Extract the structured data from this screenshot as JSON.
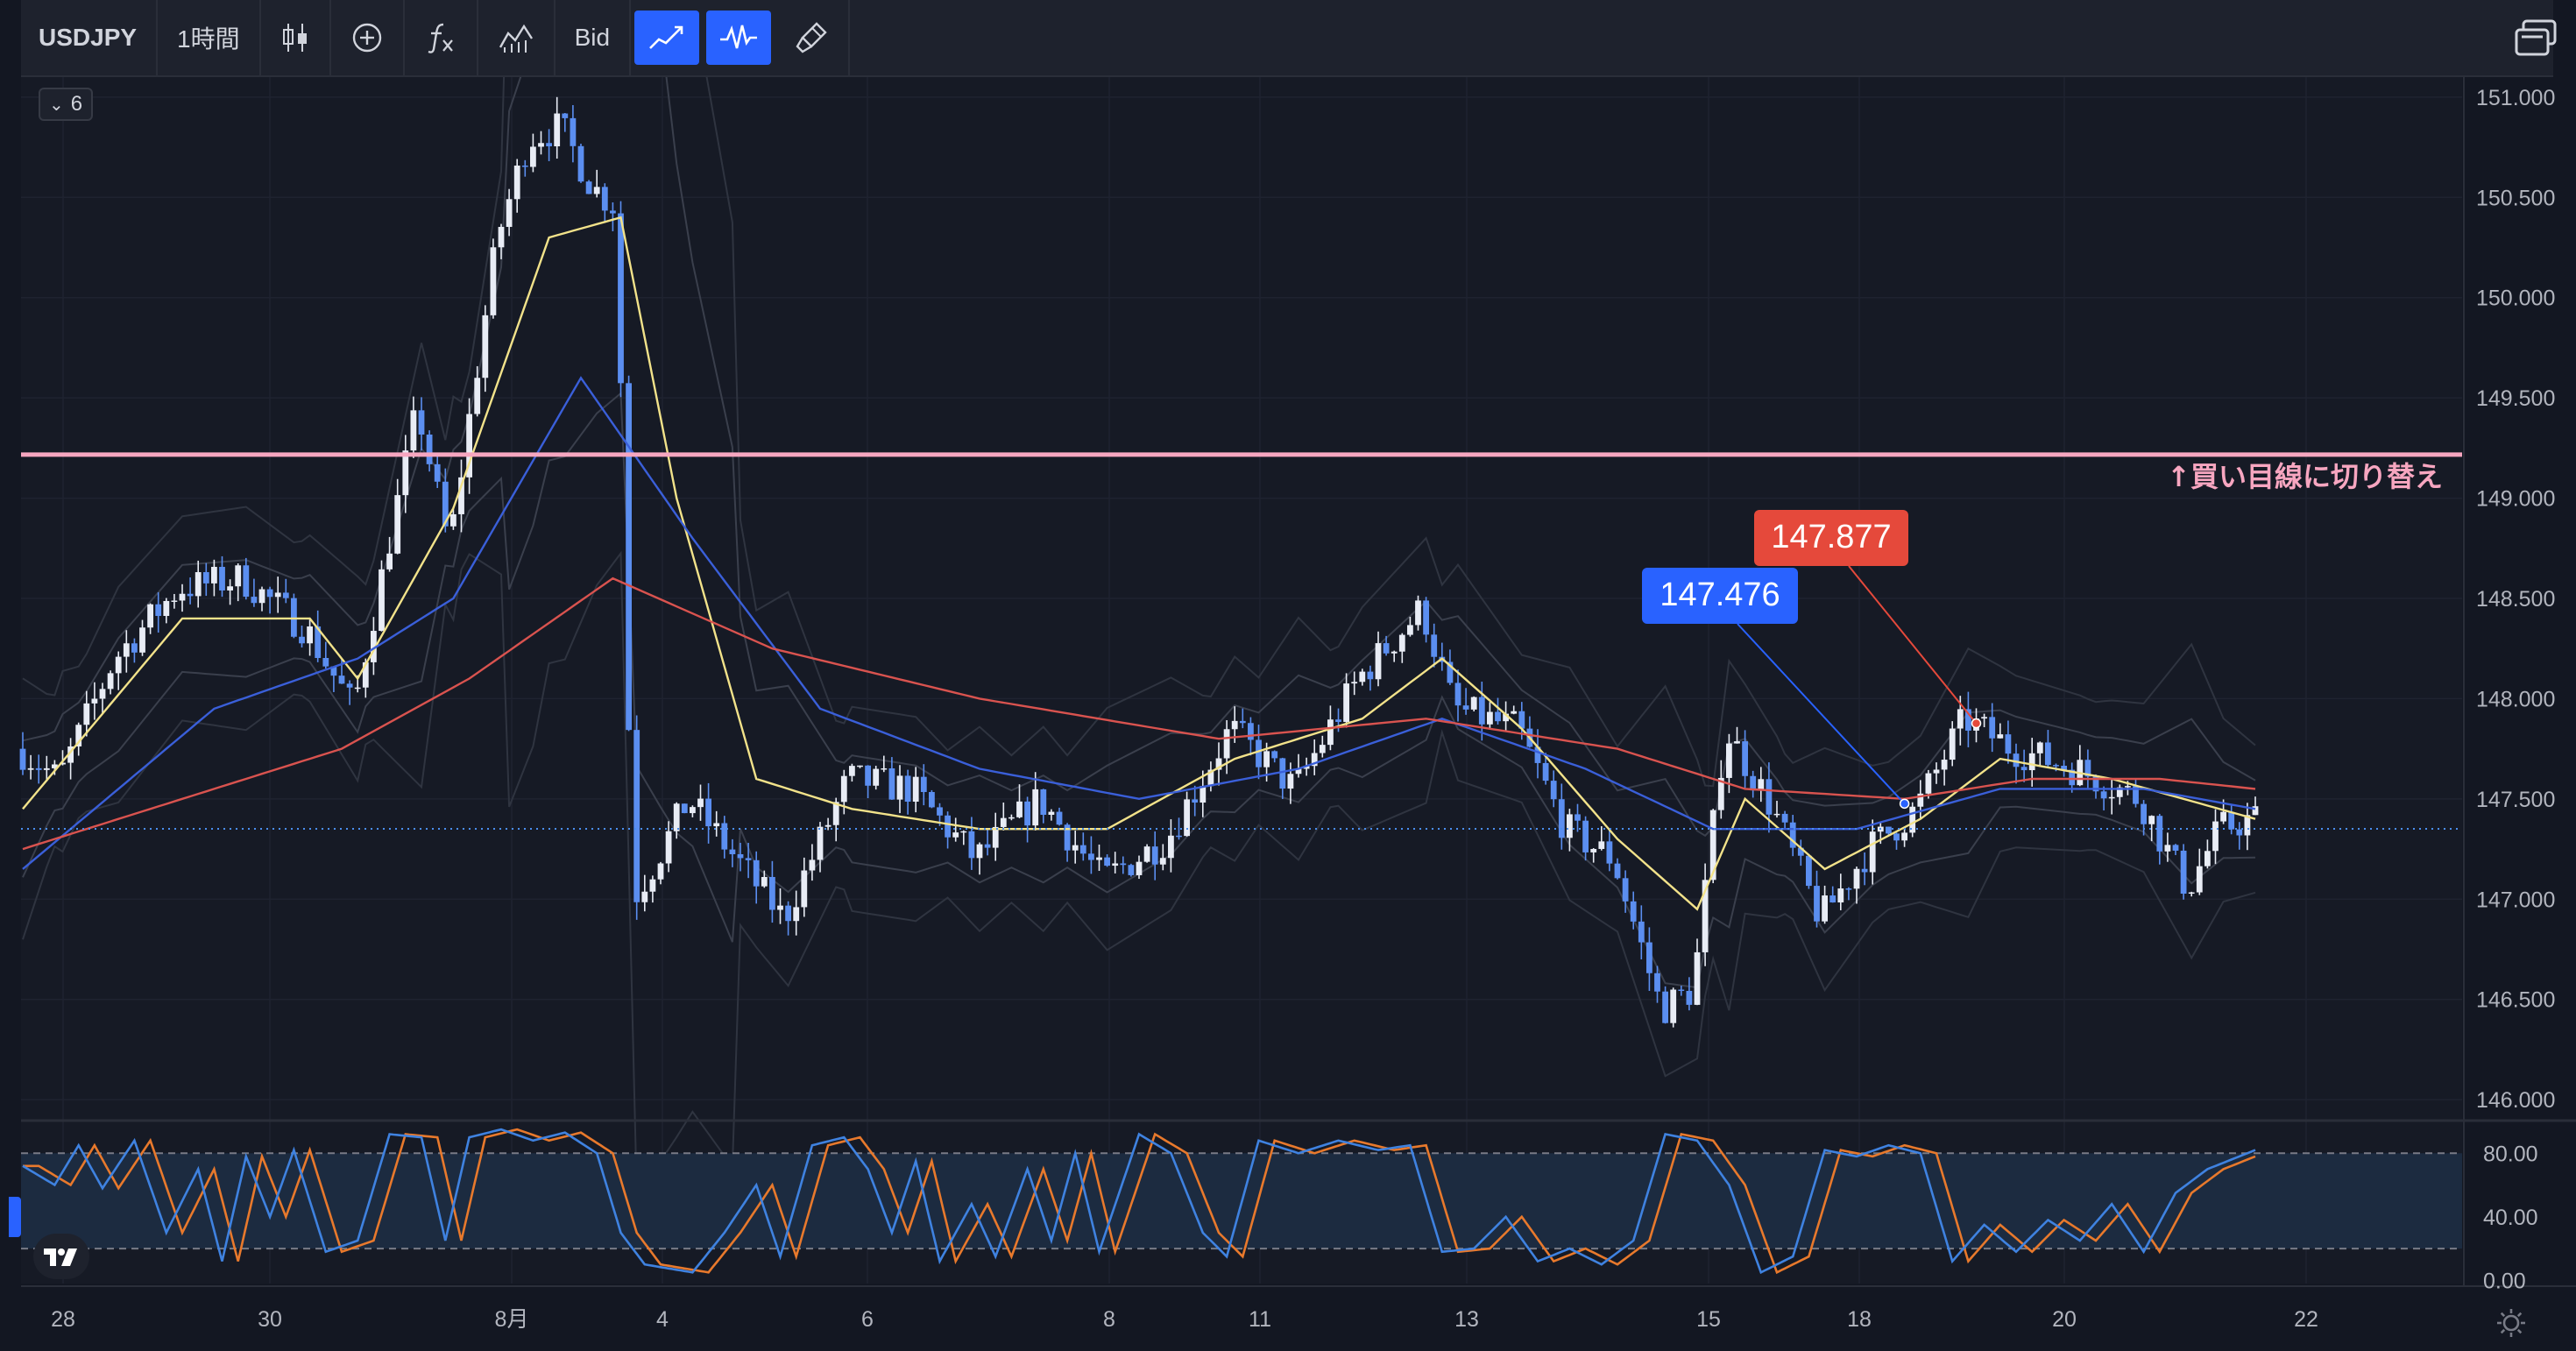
{
  "toolbar": {
    "symbol": "USDJPY",
    "interval": "1時間",
    "price_type": "Bid",
    "icons": [
      "candles-icon",
      "add-indicator-icon",
      "fx-icon",
      "templates-icon",
      "line-chart-icon",
      "waveform-icon",
      "brush-icon",
      "screens-icon"
    ]
  },
  "chart_controls": {
    "collapse_count": "6",
    "settings_icon": "gear-icon",
    "logo_icon": "tradingview-logo-icon"
  },
  "colors": {
    "background": "#131722",
    "grid": "#1f2330",
    "candle_up": "#e8ecf5",
    "candle_down": "#5b8ef0",
    "ma_yellow": "#f2e28a",
    "ma_blue": "#3a5fd9",
    "ma_red": "#d9534f",
    "level_line": "#f7a6c0",
    "stoch_k": "#3f82e0",
    "stoch_d": "#e8792c",
    "price_label": "#2962ff"
  },
  "chart_data": [
    {
      "type": "candlestick",
      "symbol": "USDJPY",
      "interval": "1時間",
      "x_tick_labels": [
        "28",
        "30",
        "8月",
        "4",
        "6",
        "8",
        "11",
        "13",
        "15",
        "18",
        "20",
        "22"
      ],
      "y_tick_labels": [
        "151.000",
        "150.500",
        "150.000",
        "149.500",
        "149.000",
        "148.500",
        "148.000",
        "147.500",
        "147.000",
        "146.500",
        "146.000"
      ],
      "ylim": [
        145.9,
        151.1
      ],
      "current_price": "147.351",
      "level_line": {
        "value": "149.217",
        "label": "↑買い目線に切り替え"
      },
      "callouts": [
        {
          "label": "147.476",
          "color": "#2962ff",
          "points_to": 147.476
        },
        {
          "label": "147.877",
          "color": "#e5493b",
          "points_to": 147.877
        }
      ],
      "close_path": [
        {
          "t": 0,
          "v": 147.75
        },
        {
          "t": 5,
          "v": 147.6
        },
        {
          "t": 12,
          "v": 148.2
        },
        {
          "t": 20,
          "v": 148.55
        },
        {
          "t": 28,
          "v": 148.6
        },
        {
          "t": 36,
          "v": 148.35
        },
        {
          "t": 42,
          "v": 147.95
        },
        {
          "t": 46,
          "v": 148.7
        },
        {
          "t": 50,
          "v": 149.45
        },
        {
          "t": 54,
          "v": 148.75
        },
        {
          "t": 60,
          "v": 150.3
        },
        {
          "t": 64,
          "v": 150.8
        },
        {
          "t": 68,
          "v": 150.85
        },
        {
          "t": 72,
          "v": 150.55
        },
        {
          "t": 75,
          "v": 150.45
        },
        {
          "t": 77,
          "v": 147.0
        },
        {
          "t": 80,
          "v": 147.2
        },
        {
          "t": 84,
          "v": 147.5
        },
        {
          "t": 88,
          "v": 147.3
        },
        {
          "t": 96,
          "v": 146.9
        },
        {
          "t": 104,
          "v": 147.6
        },
        {
          "t": 112,
          "v": 147.55
        },
        {
          "t": 120,
          "v": 147.2
        },
        {
          "t": 128,
          "v": 147.5
        },
        {
          "t": 136,
          "v": 147.1
        },
        {
          "t": 144,
          "v": 147.3
        },
        {
          "t": 152,
          "v": 147.85
        },
        {
          "t": 160,
          "v": 147.55
        },
        {
          "t": 168,
          "v": 148.1
        },
        {
          "t": 176,
          "v": 148.45
        },
        {
          "t": 180,
          "v": 147.95
        },
        {
          "t": 188,
          "v": 147.85
        },
        {
          "t": 194,
          "v": 147.35
        },
        {
          "t": 200,
          "v": 147.2
        },
        {
          "t": 206,
          "v": 146.45
        },
        {
          "t": 210,
          "v": 146.55
        },
        {
          "t": 214,
          "v": 147.85
        },
        {
          "t": 220,
          "v": 147.45
        },
        {
          "t": 226,
          "v": 146.9
        },
        {
          "t": 232,
          "v": 147.25
        },
        {
          "t": 238,
          "v": 147.45
        },
        {
          "t": 244,
          "v": 147.9
        },
        {
          "t": 250,
          "v": 147.75
        },
        {
          "t": 258,
          "v": 147.65
        },
        {
          "t": 266,
          "v": 147.5
        },
        {
          "t": 272,
          "v": 147.05
        },
        {
          "t": 276,
          "v": 147.35
        },
        {
          "t": 280,
          "v": 147.4
        }
      ],
      "moving_averages": {
        "yellow": [
          {
            "t": 0,
            "v": 147.45
          },
          {
            "t": 20,
            "v": 148.4
          },
          {
            "t": 36,
            "v": 148.4
          },
          {
            "t": 42,
            "v": 148.1
          },
          {
            "t": 54,
            "v": 148.95
          },
          {
            "t": 66,
            "v": 150.3
          },
          {
            "t": 75,
            "v": 150.4
          },
          {
            "t": 82,
            "v": 149.0
          },
          {
            "t": 92,
            "v": 147.6
          },
          {
            "t": 104,
            "v": 147.45
          },
          {
            "t": 120,
            "v": 147.35
          },
          {
            "t": 136,
            "v": 147.35
          },
          {
            "t": 152,
            "v": 147.7
          },
          {
            "t": 168,
            "v": 147.9
          },
          {
            "t": 178,
            "v": 148.2
          },
          {
            "t": 188,
            "v": 147.85
          },
          {
            "t": 200,
            "v": 147.3
          },
          {
            "t": 210,
            "v": 146.95
          },
          {
            "t": 216,
            "v": 147.5
          },
          {
            "t": 226,
            "v": 147.15
          },
          {
            "t": 238,
            "v": 147.4
          },
          {
            "t": 248,
            "v": 147.7
          },
          {
            "t": 262,
            "v": 147.6
          },
          {
            "t": 280,
            "v": 147.4
          }
        ],
        "blue": [
          {
            "t": 0,
            "v": 147.15
          },
          {
            "t": 24,
            "v": 147.95
          },
          {
            "t": 42,
            "v": 148.2
          },
          {
            "t": 54,
            "v": 148.5
          },
          {
            "t": 70,
            "v": 149.6
          },
          {
            "t": 84,
            "v": 148.8
          },
          {
            "t": 100,
            "v": 147.95
          },
          {
            "t": 120,
            "v": 147.65
          },
          {
            "t": 140,
            "v": 147.5
          },
          {
            "t": 160,
            "v": 147.65
          },
          {
            "t": 178,
            "v": 147.9
          },
          {
            "t": 196,
            "v": 147.65
          },
          {
            "t": 212,
            "v": 147.35
          },
          {
            "t": 230,
            "v": 147.35
          },
          {
            "t": 248,
            "v": 147.55
          },
          {
            "t": 266,
            "v": 147.55
          },
          {
            "t": 280,
            "v": 147.45
          }
        ],
        "red": [
          {
            "t": 0,
            "v": 147.25
          },
          {
            "t": 20,
            "v": 147.5
          },
          {
            "t": 40,
            "v": 147.75
          },
          {
            "t": 56,
            "v": 148.1
          },
          {
            "t": 74,
            "v": 148.6
          },
          {
            "t": 94,
            "v": 148.25
          },
          {
            "t": 120,
            "v": 148.0
          },
          {
            "t": 150,
            "v": 147.8
          },
          {
            "t": 176,
            "v": 147.9
          },
          {
            "t": 200,
            "v": 147.75
          },
          {
            "t": 216,
            "v": 147.55
          },
          {
            "t": 236,
            "v": 147.5
          },
          {
            "t": 252,
            "v": 147.6
          },
          {
            "t": 268,
            "v": 147.6
          },
          {
            "t": 280,
            "v": 147.55
          }
        ]
      }
    },
    {
      "type": "line",
      "name": "stochastic",
      "y_tick_labels": [
        "80.00",
        "40.00",
        "0.00"
      ],
      "ylim": [
        -2,
        100
      ],
      "reference_lines": [
        80,
        20
      ],
      "k_path": [
        {
          "t": 0,
          "v": 72
        },
        {
          "t": 4,
          "v": 60
        },
        {
          "t": 7,
          "v": 85
        },
        {
          "t": 10,
          "v": 58
        },
        {
          "t": 14,
          "v": 88
        },
        {
          "t": 18,
          "v": 30
        },
        {
          "t": 22,
          "v": 70
        },
        {
          "t": 25,
          "v": 12
        },
        {
          "t": 28,
          "v": 78
        },
        {
          "t": 31,
          "v": 40
        },
        {
          "t": 34,
          "v": 82
        },
        {
          "t": 38,
          "v": 18
        },
        {
          "t": 42,
          "v": 25
        },
        {
          "t": 46,
          "v": 92
        },
        {
          "t": 50,
          "v": 90
        },
        {
          "t": 53,
          "v": 25
        },
        {
          "t": 56,
          "v": 90
        },
        {
          "t": 60,
          "v": 95
        },
        {
          "t": 64,
          "v": 88
        },
        {
          "t": 68,
          "v": 93
        },
        {
          "t": 72,
          "v": 80
        },
        {
          "t": 75,
          "v": 30
        },
        {
          "t": 78,
          "v": 10
        },
        {
          "t": 84,
          "v": 5
        },
        {
          "t": 88,
          "v": 30
        },
        {
          "t": 92,
          "v": 60
        },
        {
          "t": 95,
          "v": 15
        },
        {
          "t": 99,
          "v": 85
        },
        {
          "t": 103,
          "v": 90
        },
        {
          "t": 106,
          "v": 70
        },
        {
          "t": 109,
          "v": 30
        },
        {
          "t": 112,
          "v": 75
        },
        {
          "t": 115,
          "v": 12
        },
        {
          "t": 119,
          "v": 48
        },
        {
          "t": 122,
          "v": 15
        },
        {
          "t": 126,
          "v": 70
        },
        {
          "t": 129,
          "v": 25
        },
        {
          "t": 132,
          "v": 80
        },
        {
          "t": 135,
          "v": 18
        },
        {
          "t": 140,
          "v": 92
        },
        {
          "t": 144,
          "v": 80
        },
        {
          "t": 148,
          "v": 30
        },
        {
          "t": 151,
          "v": 15
        },
        {
          "t": 155,
          "v": 88
        },
        {
          "t": 160,
          "v": 80
        },
        {
          "t": 165,
          "v": 88
        },
        {
          "t": 170,
          "v": 82
        },
        {
          "t": 174,
          "v": 85
        },
        {
          "t": 178,
          "v": 18
        },
        {
          "t": 182,
          "v": 20
        },
        {
          "t": 186,
          "v": 40
        },
        {
          "t": 190,
          "v": 12
        },
        {
          "t": 194,
          "v": 20
        },
        {
          "t": 198,
          "v": 10
        },
        {
          "t": 202,
          "v": 25
        },
        {
          "t": 206,
          "v": 92
        },
        {
          "t": 210,
          "v": 88
        },
        {
          "t": 214,
          "v": 60
        },
        {
          "t": 218,
          "v": 5
        },
        {
          "t": 222,
          "v": 15
        },
        {
          "t": 226,
          "v": 82
        },
        {
          "t": 230,
          "v": 78
        },
        {
          "t": 234,
          "v": 85
        },
        {
          "t": 238,
          "v": 80
        },
        {
          "t": 242,
          "v": 12
        },
        {
          "t": 246,
          "v": 35
        },
        {
          "t": 250,
          "v": 18
        },
        {
          "t": 254,
          "v": 38
        },
        {
          "t": 258,
          "v": 25
        },
        {
          "t": 262,
          "v": 48
        },
        {
          "t": 266,
          "v": 18
        },
        {
          "t": 270,
          "v": 55
        },
        {
          "t": 274,
          "v": 70
        },
        {
          "t": 280,
          "v": 82
        }
      ]
    }
  ]
}
